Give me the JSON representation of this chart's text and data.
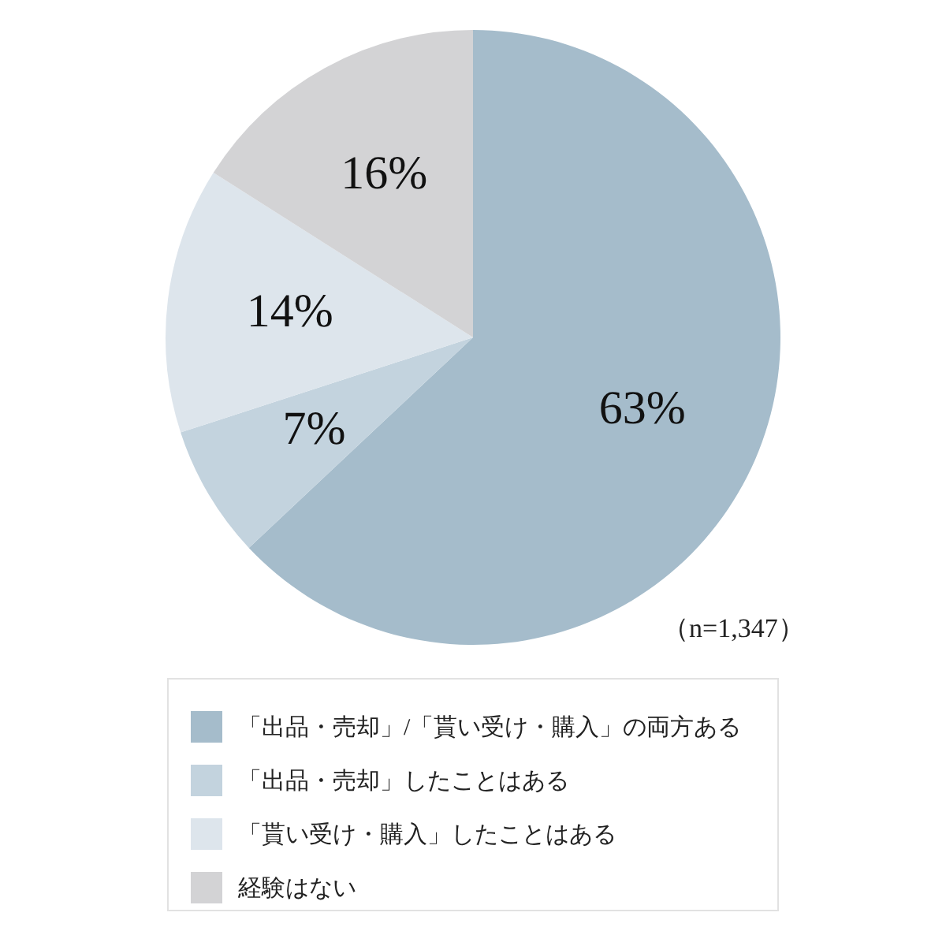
{
  "chart_data": {
    "type": "pie",
    "categories": [
      "「出品・売却」/「貰い受け・購入」の両方ある",
      "「出品・売却」したことはある",
      "「貰い受け・購入」したことはある",
      "経験はない"
    ],
    "values": [
      63,
      7,
      14,
      16
    ],
    "colors": [
      "#a5bccb",
      "#c3d3de",
      "#dde5ec",
      "#d3d3d5"
    ],
    "value_labels": [
      "63%",
      "7%",
      "14%",
      "16%"
    ],
    "annotations": [
      "（n=1,347）"
    ],
    "legend": "bottom"
  }
}
